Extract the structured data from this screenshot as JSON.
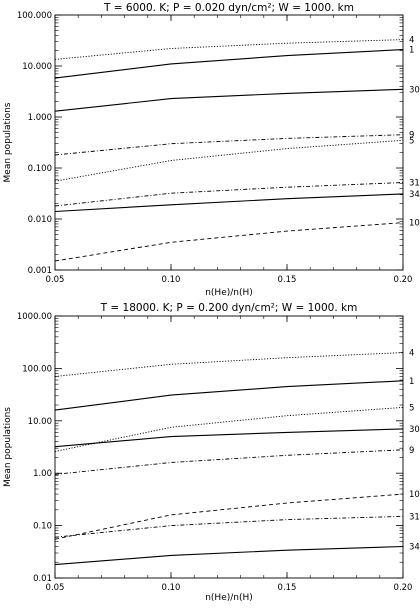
{
  "chart_data": [
    {
      "type": "line",
      "title": "T =  6000. K; P =  0.020 dyn/cm²; W = 1000. km",
      "xlabel": "n(He)/n(H)",
      "ylabel": "Mean populations",
      "xlim": [
        0.05,
        0.2
      ],
      "ylim": [
        0.001,
        100
      ],
      "yscale": "log",
      "x": [
        0.05,
        0.1,
        0.15,
        0.2
      ],
      "x_tick_labels": [
        "0.05",
        "0.10",
        "0.15",
        "0.20"
      ],
      "y_ticks": [
        0.001,
        0.01,
        0.1,
        1,
        10,
        100
      ],
      "y_tick_labels": [
        "0.001",
        "0.010",
        "0.100",
        "1.000",
        "10.000",
        "100.000"
      ],
      "series": [
        {
          "name": "4",
          "style": "dotted",
          "values": [
            13.5,
            22,
            28,
            33
          ]
        },
        {
          "name": "1",
          "style": "solid",
          "values": [
            5.8,
            11,
            16,
            21
          ]
        },
        {
          "name": "30",
          "style": "solid",
          "values": [
            1.3,
            2.3,
            2.9,
            3.5
          ]
        },
        {
          "name": "9",
          "style": "dashdot",
          "values": [
            0.18,
            0.3,
            0.38,
            0.45
          ]
        },
        {
          "name": "5",
          "style": "dotted",
          "values": [
            0.055,
            0.14,
            0.24,
            0.35
          ]
        },
        {
          "name": "31",
          "style": "dashdot",
          "values": [
            0.018,
            0.032,
            0.042,
            0.052
          ]
        },
        {
          "name": "34",
          "style": "solid",
          "values": [
            0.014,
            0.019,
            0.025,
            0.031
          ]
        },
        {
          "name": "10",
          "style": "dashed",
          "values": [
            0.0015,
            0.0035,
            0.0058,
            0.0085
          ]
        }
      ]
    },
    {
      "type": "line",
      "title": "T = 18000. K; P =  0.200 dyn/cm²; W = 1000. km",
      "xlabel": "n(He)/n(H)",
      "ylabel": "Mean populations",
      "xlim": [
        0.05,
        0.2
      ],
      "ylim": [
        0.01,
        1000
      ],
      "yscale": "log",
      "x": [
        0.05,
        0.1,
        0.15,
        0.2
      ],
      "x_tick_labels": [
        "0.05",
        "0.10",
        "0.15",
        "0.20"
      ],
      "y_ticks": [
        0.01,
        0.1,
        1,
        10,
        100,
        1000
      ],
      "y_tick_labels": [
        "0.01",
        "0.10",
        "1.00",
        "10.00",
        "100.00",
        "1000.00"
      ],
      "series": [
        {
          "name": "4",
          "style": "dotted",
          "values": [
            70,
            120,
            160,
            200
          ]
        },
        {
          "name": "1",
          "style": "solid",
          "values": [
            16,
            31,
            45,
            58
          ]
        },
        {
          "name": "5",
          "style": "dotted",
          "values": [
            2.6,
            7.5,
            12.5,
            18
          ]
        },
        {
          "name": "30",
          "style": "solid",
          "values": [
            3.2,
            5.0,
            6.0,
            7.0
          ]
        },
        {
          "name": "9",
          "style": "dashdot",
          "values": [
            0.95,
            1.6,
            2.2,
            2.8
          ]
        },
        {
          "name": "10",
          "style": "dashed",
          "values": [
            0.055,
            0.16,
            0.27,
            0.4
          ]
        },
        {
          "name": "31",
          "style": "dashdot",
          "values": [
            0.06,
            0.1,
            0.13,
            0.15
          ]
        },
        {
          "name": "34",
          "style": "solid",
          "values": [
            0.018,
            0.027,
            0.034,
            0.04
          ]
        }
      ]
    }
  ]
}
